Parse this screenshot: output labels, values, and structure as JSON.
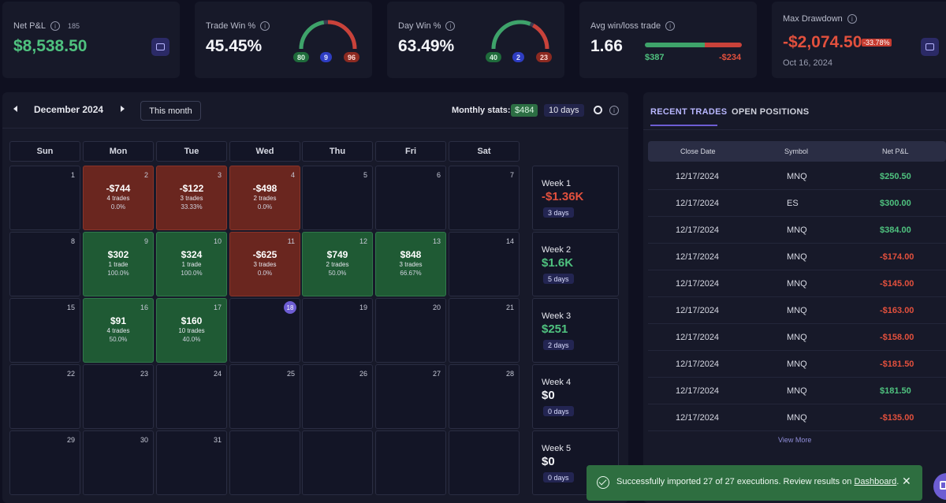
{
  "stats": {
    "net_pnl": {
      "title": "Net P&L",
      "count": "185",
      "value": "$8,538.50"
    },
    "trade_win": {
      "title": "Trade Win %",
      "value": "45.45%",
      "win": "80",
      "even": "9",
      "loss": "96",
      "win_frac": 0.45
    },
    "day_win": {
      "title": "Day Win %",
      "value": "63.49%",
      "win": "40",
      "even": "2",
      "loss": "23",
      "win_frac": 0.63
    },
    "avg_wl": {
      "title": "Avg win/loss trade",
      "value": "1.66",
      "avg_win": "$387",
      "avg_loss": "-$234",
      "win_frac": 0.62
    },
    "max_dd": {
      "title": "Max Drawdown",
      "value": "-$2,074.50",
      "pct": "-33.78%",
      "date": "Oct 16, 2024"
    }
  },
  "calendar": {
    "month": "December 2024",
    "this_month": "This month",
    "monthly_stats_label": "Monthly stats:",
    "monthly_pnl": "$484",
    "monthly_days": "10 days",
    "weekdays": [
      "Sun",
      "Mon",
      "Tue",
      "Wed",
      "Thu",
      "Fri",
      "Sat"
    ],
    "days": [
      {
        "n": "1"
      },
      {
        "n": "2",
        "pnl": "-$744",
        "trades": "4 trades",
        "pct": "0.0%",
        "result": "loss"
      },
      {
        "n": "3",
        "pnl": "-$122",
        "trades": "3 trades",
        "pct": "33.33%",
        "result": "loss"
      },
      {
        "n": "4",
        "pnl": "-$498",
        "trades": "2 trades",
        "pct": "0.0%",
        "result": "loss"
      },
      {
        "n": "5"
      },
      {
        "n": "6"
      },
      {
        "n": "7"
      },
      {
        "n": "8"
      },
      {
        "n": "9",
        "pnl": "$302",
        "trades": "1 trade",
        "pct": "100.0%",
        "result": "win"
      },
      {
        "n": "10",
        "pnl": "$324",
        "trades": "1 trade",
        "pct": "100.0%",
        "result": "win"
      },
      {
        "n": "11",
        "pnl": "-$625",
        "trades": "3 trades",
        "pct": "0.0%",
        "result": "loss"
      },
      {
        "n": "12",
        "pnl": "$749",
        "trades": "2 trades",
        "pct": "50.0%",
        "result": "win"
      },
      {
        "n": "13",
        "pnl": "$848",
        "trades": "3 trades",
        "pct": "66.67%",
        "result": "win"
      },
      {
        "n": "14"
      },
      {
        "n": "15"
      },
      {
        "n": "16",
        "pnl": "$91",
        "trades": "4 trades",
        "pct": "50.0%",
        "result": "win"
      },
      {
        "n": "17",
        "pnl": "$160",
        "trades": "10 trades",
        "pct": "40.0%",
        "result": "win"
      },
      {
        "n": "18",
        "today": true
      },
      {
        "n": "19"
      },
      {
        "n": "20"
      },
      {
        "n": "21"
      },
      {
        "n": "22"
      },
      {
        "n": "23"
      },
      {
        "n": "24"
      },
      {
        "n": "25"
      },
      {
        "n": "26"
      },
      {
        "n": "27"
      },
      {
        "n": "28"
      },
      {
        "n": "29"
      },
      {
        "n": "30"
      },
      {
        "n": "31"
      },
      {
        "n": ""
      },
      {
        "n": ""
      },
      {
        "n": ""
      },
      {
        "n": ""
      }
    ],
    "weeks": [
      {
        "label": "Week 1",
        "value": "-$1.36K",
        "days": "3 days",
        "tone": "red"
      },
      {
        "label": "Week 2",
        "value": "$1.6K",
        "days": "5 days",
        "tone": "green"
      },
      {
        "label": "Week 3",
        "value": "$251",
        "days": "2 days",
        "tone": "green"
      },
      {
        "label": "Week 4",
        "value": "$0",
        "days": "0 days",
        "tone": "white"
      },
      {
        "label": "Week 5",
        "value": "$0",
        "days": "0 days",
        "tone": "white"
      }
    ]
  },
  "trades": {
    "tabs": [
      "RECENT TRADES",
      "OPEN POSITIONS"
    ],
    "columns": [
      "Close Date",
      "Symbol",
      "Net P&L"
    ],
    "rows": [
      {
        "date": "12/17/2024",
        "symbol": "MNQ",
        "pnl": "$250.50",
        "tone": "green"
      },
      {
        "date": "12/17/2024",
        "symbol": "ES",
        "pnl": "$300.00",
        "tone": "green"
      },
      {
        "date": "12/17/2024",
        "symbol": "MNQ",
        "pnl": "$384.00",
        "tone": "green"
      },
      {
        "date": "12/17/2024",
        "symbol": "MNQ",
        "pnl": "-$174.00",
        "tone": "red"
      },
      {
        "date": "12/17/2024",
        "symbol": "MNQ",
        "pnl": "-$145.00",
        "tone": "red"
      },
      {
        "date": "12/17/2024",
        "symbol": "MNQ",
        "pnl": "-$163.00",
        "tone": "red"
      },
      {
        "date": "12/17/2024",
        "symbol": "MNQ",
        "pnl": "-$158.00",
        "tone": "red"
      },
      {
        "date": "12/17/2024",
        "symbol": "MNQ",
        "pnl": "-$181.50",
        "tone": "red"
      },
      {
        "date": "12/17/2024",
        "symbol": "MNQ",
        "pnl": "$181.50",
        "tone": "green"
      },
      {
        "date": "12/17/2024",
        "symbol": "MNQ",
        "pnl": "-$135.00",
        "tone": "red"
      }
    ],
    "view_more": "View More"
  },
  "toast": {
    "message": "Successfully imported 27 of 27 executions. Review results on ",
    "link": "Dashboard",
    "end": ".",
    "close": "✕"
  },
  "colors": {
    "green": "#4fc27f",
    "red": "#e2503d",
    "accent": "#6d5dd3"
  }
}
